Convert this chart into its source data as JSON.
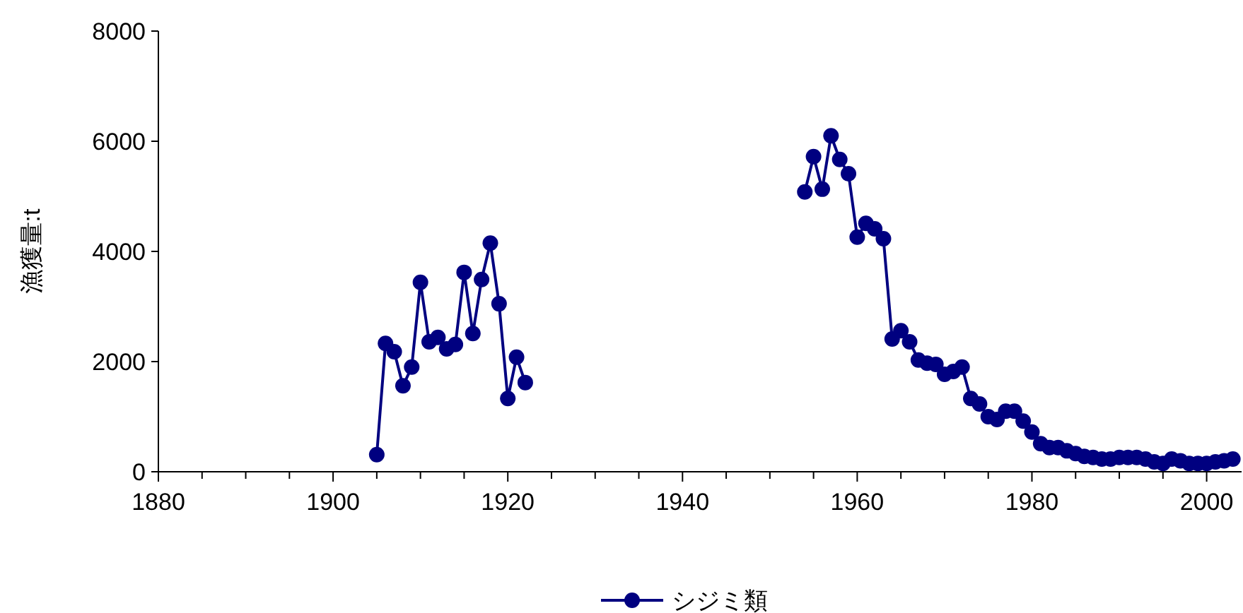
{
  "chart_data": {
    "type": "line",
    "ylabel": "漁獲量:t",
    "xlim": [
      1880,
      2004
    ],
    "ylim": [
      0,
      8000
    ],
    "yticks": [
      0,
      2000,
      4000,
      6000,
      8000
    ],
    "xticks": [
      1880,
      {
        "value": 1885,
        "label": null
      },
      {
        "value": 1890,
        "label": null
      },
      {
        "value": 1895,
        "label": null
      },
      1900,
      {
        "value": 1905,
        "label": null
      },
      {
        "value": 1910,
        "label": null
      },
      {
        "value": 1915,
        "label": null
      },
      1920,
      {
        "value": 1925,
        "label": null
      },
      {
        "value": 1930,
        "label": null
      },
      {
        "value": 1935,
        "label": null
      },
      1940,
      {
        "value": 1945,
        "label": null
      },
      {
        "value": 1950,
        "label": null
      },
      {
        "value": 1955,
        "label": null
      },
      1960,
      {
        "value": 1965,
        "label": null
      },
      {
        "value": 1970,
        "label": null
      },
      {
        "value": 1975,
        "label": null
      },
      1980,
      {
        "value": 1985,
        "label": null
      },
      {
        "value": 1990,
        "label": null
      },
      {
        "value": 1995,
        "label": null
      },
      2000
    ],
    "grid": false,
    "legend": "bottom",
    "marker": "circle",
    "line_style": "solid",
    "series": [
      {
        "name": "シジミ類",
        "color": "#000080",
        "x": [
          1905,
          1906,
          1907,
          1908,
          1909,
          1910,
          1911,
          1912,
          1913,
          1914,
          1915,
          1916,
          1917,
          1918,
          1919,
          1920,
          1921,
          1922,
          1923,
          1954,
          1955,
          1956,
          1957,
          1958,
          1959,
          1960,
          1961,
          1962,
          1963,
          1964,
          1965,
          1966,
          1967,
          1968,
          1969,
          1970,
          1971,
          1972,
          1973,
          1974,
          1975,
          1976,
          1977,
          1978,
          1979,
          1980,
          1981,
          1982,
          1983,
          1984,
          1985,
          1986,
          1987,
          1988,
          1989,
          1990,
          1991,
          1992,
          1993,
          1994,
          1995,
          1996,
          1997,
          1998,
          1999,
          2000,
          2001,
          2002,
          2003
        ],
        "values": [
          310,
          2330,
          2180,
          1560,
          1900,
          3440,
          2360,
          2440,
          2230,
          2310,
          3620,
          2510,
          3490,
          4150,
          3050,
          1330,
          2080,
          1620,
          null,
          5080,
          5720,
          5130,
          6100,
          5670,
          5410,
          4260,
          4510,
          4410,
          4230,
          2410,
          2560,
          2360,
          2030,
          1970,
          1950,
          1770,
          1820,
          1900,
          1330,
          1230,
          1000,
          950,
          1100,
          1100,
          920,
          720,
          510,
          440,
          440,
          380,
          330,
          280,
          260,
          230,
          230,
          260,
          260,
          260,
          230,
          180,
          150,
          230,
          200,
          150,
          150,
          150,
          180,
          200,
          230
        ]
      }
    ]
  }
}
